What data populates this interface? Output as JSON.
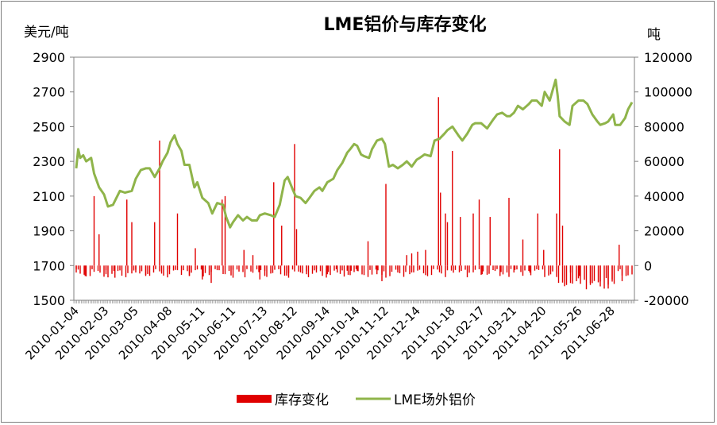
{
  "chart_data": {
    "type": "bar+line",
    "title": "LME铝价与库存变化",
    "y_left_unit": "美元/吨",
    "y_right_unit": "吨",
    "y_left_range": [
      1500,
      2900
    ],
    "y_left_ticks": [
      "1500",
      "1700",
      "1900",
      "2100",
      "2300",
      "2500",
      "2700",
      "2900"
    ],
    "y_right_range": [
      -20000,
      120000
    ],
    "y_right_ticks": [
      "-20000",
      "0",
      "20000",
      "40000",
      "60000",
      "80000",
      "100000",
      "120000"
    ],
    "x_tick_labels": [
      "2010-01-04",
      "2010-02-03",
      "2010-03-05",
      "2010-04-08",
      "2010-05-11",
      "2010-06-11",
      "2010-07-13",
      "2010-08-12",
      "2010-09-14",
      "2010-10-14",
      "2010-11-12",
      "2010-12-14",
      "2011-01-18",
      "2011-02-17",
      "2011-03-21",
      "2011-04-20",
      "2011-05-26",
      "2011-06-28"
    ],
    "series": [
      {
        "name": "库存变化",
        "kind": "bar",
        "axis": "right",
        "color": "#e00000",
        "points": [
          [
            "2010-01-04",
            -4000
          ],
          [
            "2010-01-13",
            -6000
          ],
          [
            "2010-01-22",
            40000
          ],
          [
            "2010-01-27",
            18000
          ],
          [
            "2010-02-03",
            -5000
          ],
          [
            "2010-02-12",
            -7000
          ],
          [
            "2010-02-24",
            38000
          ],
          [
            "2010-03-01",
            25000
          ],
          [
            "2010-03-05",
            -4000
          ],
          [
            "2010-03-15",
            -6000
          ],
          [
            "2010-03-24",
            25000
          ],
          [
            "2010-03-29",
            72000
          ],
          [
            "2010-04-08",
            -5000
          ],
          [
            "2010-04-16",
            30000
          ],
          [
            "2010-04-28",
            -6000
          ],
          [
            "2010-05-04",
            10000
          ],
          [
            "2010-05-11",
            -8000
          ],
          [
            "2010-05-20",
            -10000
          ],
          [
            "2010-05-31",
            38000
          ],
          [
            "2010-06-03",
            40000
          ],
          [
            "2010-06-11",
            -7000
          ],
          [
            "2010-06-22",
            9000
          ],
          [
            "2010-07-01",
            6000
          ],
          [
            "2010-07-08",
            -8000
          ],
          [
            "2010-07-13",
            -6000
          ],
          [
            "2010-07-22",
            48000
          ],
          [
            "2010-07-30",
            23000
          ],
          [
            "2010-08-06",
            -7000
          ],
          [
            "2010-08-12",
            70000
          ],
          [
            "2010-08-14",
            21000
          ],
          [
            "2010-08-24",
            -5000
          ],
          [
            "2010-09-03",
            -4000
          ],
          [
            "2010-09-14",
            -5000
          ],
          [
            "2010-09-24",
            -4000
          ],
          [
            "2010-10-04",
            -3000
          ],
          [
            "2010-10-08",
            -3000
          ],
          [
            "2010-10-14",
            -3000
          ],
          [
            "2010-10-25",
            14000
          ],
          [
            "2010-11-03",
            -5000
          ],
          [
            "2010-11-08",
            -9000
          ],
          [
            "2010-11-12",
            47000
          ],
          [
            "2010-11-24",
            -4000
          ],
          [
            "2010-12-03",
            6000
          ],
          [
            "2010-12-08",
            7000
          ],
          [
            "2010-12-14",
            8000
          ],
          [
            "2010-12-22",
            9000
          ],
          [
            "2011-01-04",
            97000
          ],
          [
            "2011-01-06",
            42000
          ],
          [
            "2011-01-11",
            30000
          ],
          [
            "2011-01-13",
            25000
          ],
          [
            "2011-01-18",
            66000
          ],
          [
            "2011-01-26",
            28000
          ],
          [
            "2011-02-08",
            30000
          ],
          [
            "2011-02-14",
            38000
          ],
          [
            "2011-02-17",
            -5000
          ],
          [
            "2011-02-25",
            28000
          ],
          [
            "2011-03-07",
            -6000
          ],
          [
            "2011-03-16",
            39000
          ],
          [
            "2011-03-21",
            -4000
          ],
          [
            "2011-03-30",
            15000
          ],
          [
            "2011-04-06",
            -4000
          ],
          [
            "2011-04-14",
            30000
          ],
          [
            "2011-04-20",
            9000
          ],
          [
            "2011-05-03",
            30000
          ],
          [
            "2011-05-06",
            67000
          ],
          [
            "2011-05-09",
            23000
          ],
          [
            "2011-05-17",
            -4000
          ],
          [
            "2011-05-26",
            -6000
          ],
          [
            "2011-06-06",
            -10000
          ],
          [
            "2011-06-16",
            -12000
          ],
          [
            "2011-06-24",
            -11000
          ],
          [
            "2011-06-28",
            -8000
          ],
          [
            "2011-07-05",
            12000
          ],
          [
            "2011-07-08",
            -9000
          ]
        ]
      },
      {
        "name": "LME场外铝价",
        "kind": "line",
        "axis": "left",
        "color": "#8fb44a",
        "points": [
          [
            "2010-01-04",
            2260
          ],
          [
            "2010-01-06",
            2370
          ],
          [
            "2010-01-08",
            2320
          ],
          [
            "2010-01-11",
            2335
          ],
          [
            "2010-01-14",
            2300
          ],
          [
            "2010-01-19",
            2320
          ],
          [
            "2010-01-22",
            2230
          ],
          [
            "2010-01-27",
            2150
          ],
          [
            "2010-02-01",
            2110
          ],
          [
            "2010-02-05",
            2040
          ],
          [
            "2010-02-10",
            2050
          ],
          [
            "2010-02-17",
            2130
          ],
          [
            "2010-02-22",
            2120
          ],
          [
            "2010-03-01",
            2130
          ],
          [
            "2010-03-05",
            2200
          ],
          [
            "2010-03-10",
            2250
          ],
          [
            "2010-03-15",
            2260
          ],
          [
            "2010-03-19",
            2260
          ],
          [
            "2010-03-24",
            2210
          ],
          [
            "2010-03-29",
            2260
          ],
          [
            "2010-04-01",
            2300
          ],
          [
            "2010-04-06",
            2350
          ],
          [
            "2010-04-09",
            2410
          ],
          [
            "2010-04-13",
            2450
          ],
          [
            "2010-04-16",
            2400
          ],
          [
            "2010-04-20",
            2360
          ],
          [
            "2010-04-23",
            2280
          ],
          [
            "2010-04-28",
            2280
          ],
          [
            "2010-05-03",
            2150
          ],
          [
            "2010-05-06",
            2180
          ],
          [
            "2010-05-11",
            2090
          ],
          [
            "2010-05-17",
            2060
          ],
          [
            "2010-05-21",
            2000
          ],
          [
            "2010-05-26",
            2060
          ],
          [
            "2010-06-01",
            2050
          ],
          [
            "2010-06-04",
            1980
          ],
          [
            "2010-06-08",
            1920
          ],
          [
            "2010-06-11",
            1950
          ],
          [
            "2010-06-16",
            1990
          ],
          [
            "2010-06-21",
            1960
          ],
          [
            "2010-06-25",
            1980
          ],
          [
            "2010-06-30",
            1960
          ],
          [
            "2010-07-05",
            1960
          ],
          [
            "2010-07-08",
            1990
          ],
          [
            "2010-07-13",
            2000
          ],
          [
            "2010-07-19",
            1990
          ],
          [
            "2010-07-23",
            1980
          ],
          [
            "2010-07-28",
            2050
          ],
          [
            "2010-08-02",
            2190
          ],
          [
            "2010-08-05",
            2210
          ],
          [
            "2010-08-10",
            2140
          ],
          [
            "2010-08-13",
            2100
          ],
          [
            "2010-08-18",
            2090
          ],
          [
            "2010-08-23",
            2060
          ],
          [
            "2010-08-27",
            2090
          ],
          [
            "2010-09-01",
            2130
          ],
          [
            "2010-09-06",
            2150
          ],
          [
            "2010-09-09",
            2130
          ],
          [
            "2010-09-14",
            2180
          ],
          [
            "2010-09-20",
            2200
          ],
          [
            "2010-09-24",
            2250
          ],
          [
            "2010-09-29",
            2290
          ],
          [
            "2010-10-04",
            2350
          ],
          [
            "2010-10-07",
            2370
          ],
          [
            "2010-10-11",
            2400
          ],
          [
            "2010-10-14",
            2390
          ],
          [
            "2010-10-18",
            2340
          ],
          [
            "2010-10-21",
            2330
          ],
          [
            "2010-10-26",
            2320
          ],
          [
            "2010-10-29",
            2370
          ],
          [
            "2010-11-03",
            2420
          ],
          [
            "2010-11-08",
            2430
          ],
          [
            "2010-11-11",
            2400
          ],
          [
            "2010-11-15",
            2270
          ],
          [
            "2010-11-19",
            2280
          ],
          [
            "2010-11-24",
            2260
          ],
          [
            "2010-11-29",
            2280
          ],
          [
            "2010-12-03",
            2300
          ],
          [
            "2010-12-08",
            2270
          ],
          [
            "2010-12-13",
            2310
          ],
          [
            "2010-12-16",
            2320
          ],
          [
            "2010-12-21",
            2340
          ],
          [
            "2010-12-27",
            2330
          ],
          [
            "2010-12-31",
            2420
          ],
          [
            "2011-01-05",
            2430
          ],
          [
            "2011-01-10",
            2460
          ],
          [
            "2011-01-13",
            2480
          ],
          [
            "2011-01-18",
            2500
          ],
          [
            "2011-01-24",
            2450
          ],
          [
            "2011-01-28",
            2420
          ],
          [
            "2011-02-02",
            2460
          ],
          [
            "2011-02-07",
            2510
          ],
          [
            "2011-02-10",
            2520
          ],
          [
            "2011-02-16",
            2520
          ],
          [
            "2011-02-22",
            2490
          ],
          [
            "2011-02-28",
            2540
          ],
          [
            "2011-03-04",
            2570
          ],
          [
            "2011-03-09",
            2580
          ],
          [
            "2011-03-14",
            2560
          ],
          [
            "2011-03-17",
            2560
          ],
          [
            "2011-03-21",
            2580
          ],
          [
            "2011-03-25",
            2620
          ],
          [
            "2011-03-30",
            2600
          ],
          [
            "2011-04-05",
            2630
          ],
          [
            "2011-04-08",
            2650
          ],
          [
            "2011-04-13",
            2650
          ],
          [
            "2011-04-18",
            2620
          ],
          [
            "2011-04-21",
            2700
          ],
          [
            "2011-04-26",
            2650
          ],
          [
            "2011-05-02",
            2770
          ],
          [
            "2011-05-04",
            2680
          ],
          [
            "2011-05-06",
            2560
          ],
          [
            "2011-05-11",
            2530
          ],
          [
            "2011-05-16",
            2510
          ],
          [
            "2011-05-19",
            2620
          ],
          [
            "2011-05-25",
            2650
          ],
          [
            "2011-05-30",
            2650
          ],
          [
            "2011-06-03",
            2630
          ],
          [
            "2011-06-08",
            2570
          ],
          [
            "2011-06-13",
            2530
          ],
          [
            "2011-06-16",
            2510
          ],
          [
            "2011-06-21",
            2520
          ],
          [
            "2011-06-24",
            2530
          ],
          [
            "2011-06-29",
            2570
          ],
          [
            "2011-07-01",
            2510
          ],
          [
            "2011-07-06",
            2510
          ],
          [
            "2011-07-11",
            2550
          ],
          [
            "2011-07-14",
            2600
          ],
          [
            "2011-07-18",
            2640
          ]
        ]
      }
    ],
    "legend": [
      "库存变化",
      "LME场外铝价"
    ],
    "legend_position": "bottom",
    "grid": false
  }
}
